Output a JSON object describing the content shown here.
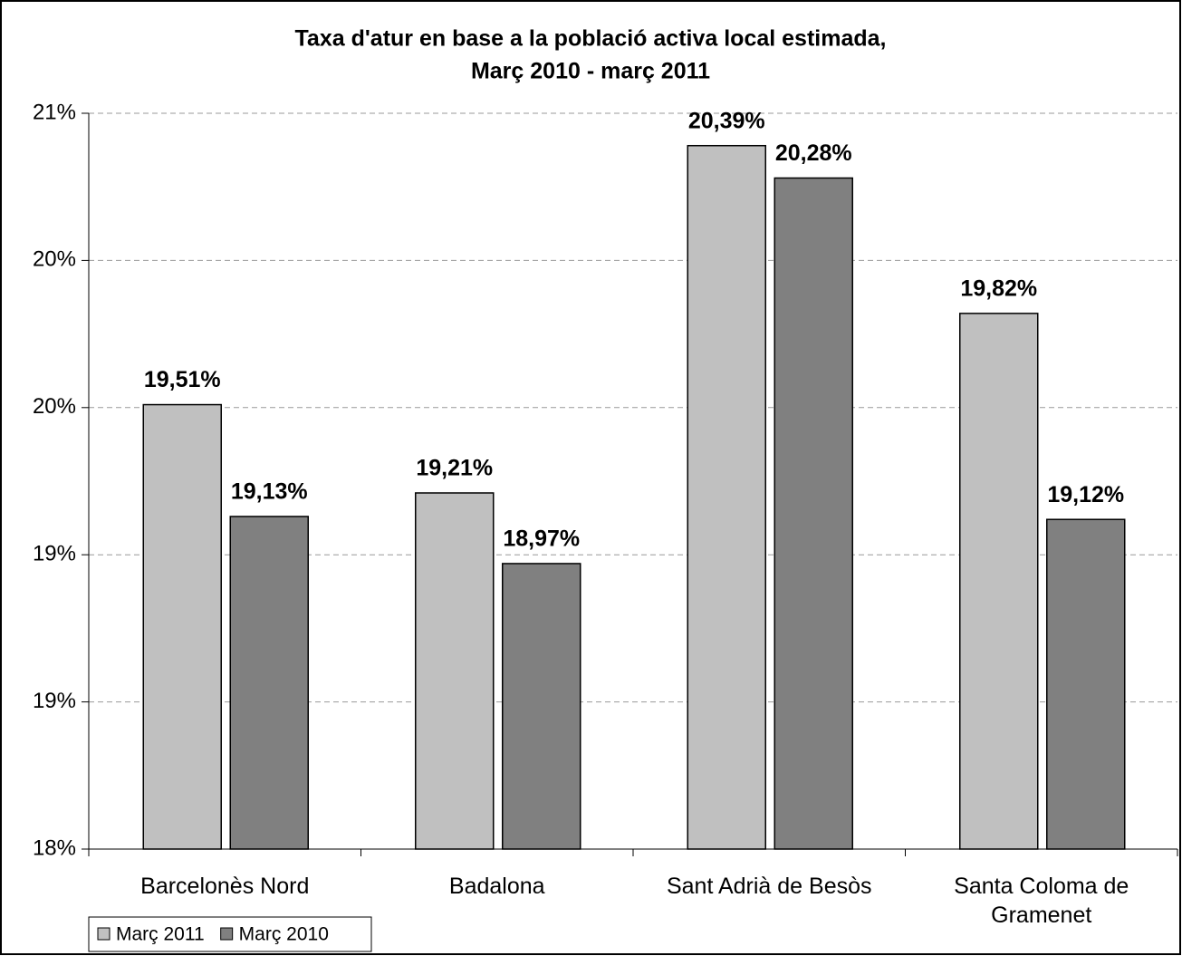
{
  "chart_data": {
    "type": "bar",
    "title": "Taxa d'atur en base a la població activa local estimada,",
    "subtitle": "Març 2010 - març 2011",
    "categories": [
      "Barcelonès Nord",
      "Badalona",
      "Sant Adrià de Besòs",
      "Santa Coloma de Gramenet"
    ],
    "series": [
      {
        "name": "Març 2011",
        "color": "#c0c0c0",
        "values": [
          19.51,
          19.21,
          20.39,
          19.82
        ],
        "value_labels": [
          "19,51%",
          "19,21%",
          "20,39%",
          "19,82%"
        ]
      },
      {
        "name": "Març 2010",
        "color": "#808080",
        "values": [
          19.13,
          18.97,
          20.28,
          19.12
        ],
        "value_labels": [
          "19,13%",
          "18,97%",
          "20,28%",
          "19,12%"
        ]
      }
    ],
    "ylim": [
      18,
      20.5
    ],
    "yticks": [
      {
        "value": 18,
        "label": "18%"
      },
      {
        "value": 18.5,
        "label": "19%"
      },
      {
        "value": 19,
        "label": "19%"
      },
      {
        "value": 19.5,
        "label": "20%"
      },
      {
        "value": 20,
        "label": "20%"
      },
      {
        "value": 20.5,
        "label": "21%"
      }
    ],
    "grid": true,
    "legend": "bottom-left"
  }
}
